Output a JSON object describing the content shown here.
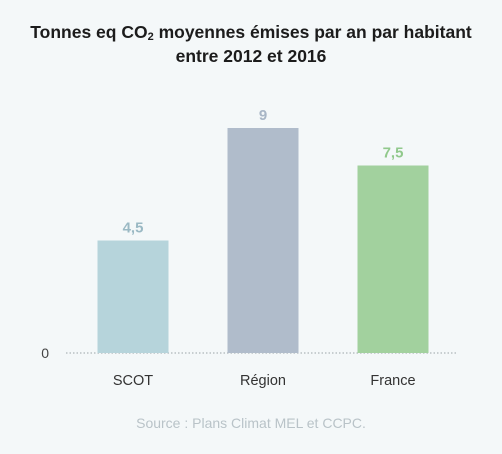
{
  "chart_data": {
    "type": "bar",
    "title_main": "Tonnes eq CO",
    "title_sub": "2",
    "title_rest": " moyennes émises par an par habitant",
    "title_line2": "entre 2012 et 2016",
    "categories": [
      "SCOT",
      "Région",
      "France"
    ],
    "values": [
      4.5,
      9,
      7.5
    ],
    "value_labels": [
      "4,5",
      "9",
      "7,5"
    ],
    "colors": [
      "#b6d4db",
      "#b0bccb",
      "#a2d19e"
    ],
    "label_colors": [
      "#9ab9c4",
      "#a8b6c6",
      "#91c98c"
    ],
    "ylim": [
      0,
      10
    ],
    "y_ticks": [
      "0"
    ],
    "grid": false,
    "legend": "none"
  },
  "source": "Source : Plans Climat MEL et CCPC."
}
